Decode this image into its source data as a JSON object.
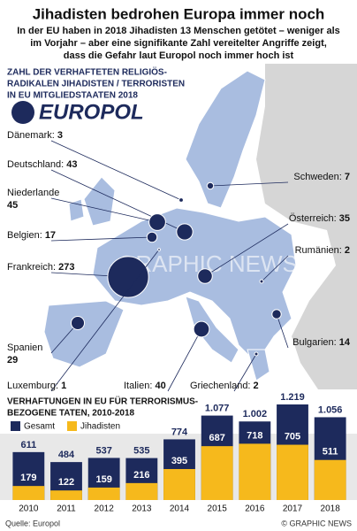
{
  "title": "Jihadisten bedrohen Europa immer noch",
  "subtitle": [
    "In der EU haben in 2018 Jihadisten 13 Menschen getötet – weniger als",
    "im Vorjahr –  aber eine signifikante Zahl vereitelter Angriffe zeigt,",
    "dass die Gefahr laut Europol noch immer hoch ist"
  ],
  "map": {
    "heading": [
      "ZAHL DER VERHAFTETEN RELIGIÖS-",
      "RADIKALEN JIHADISTEN / TERRORISTEN",
      "IN EU MITGLIEDSTAATEN 2018"
    ],
    "logo": "EUROPOL",
    "watermark": "GRAPHIC NEWS",
    "countries": [
      {
        "name": "Dänemark:",
        "value": 3
      },
      {
        "name": "Deutschland:",
        "value": 43
      },
      {
        "name": "Niederlande",
        "value": 45
      },
      {
        "name": "Belgien:",
        "value": 17
      },
      {
        "name": "Frankreich:",
        "value": 273
      },
      {
        "name": "Spanien",
        "value": 29
      },
      {
        "name": "Luxemburg:",
        "value": 1
      },
      {
        "name": "Italien:",
        "value": 40
      },
      {
        "name": "Griechenland:",
        "value": 2
      },
      {
        "name": "Bulgarien:",
        "value": 14
      },
      {
        "name": "Rumänien:",
        "value": 2
      },
      {
        "name": "Österreich:",
        "value": 35
      },
      {
        "name": "Schweden:",
        "value": 7
      }
    ]
  },
  "chart_data": {
    "type": "bar",
    "title": [
      "VERHAFTUNGEN IN EU FÜR TERRORISMUS-",
      "BEZOGENE  TATEN, 2010-2018"
    ],
    "categories": [
      "2010",
      "2011",
      "2012",
      "2013",
      "2014",
      "2015",
      "2016",
      "2017",
      "2018"
    ],
    "series": [
      {
        "name": "Gesamt",
        "color": "#1d2a5c",
        "values": [
          611,
          484,
          537,
          535,
          774,
          1077,
          1002,
          1219,
          1056
        ],
        "value_labels": [
          "611",
          "484",
          "537",
          "535",
          "774",
          "1.077",
          "1.002",
          "1.219",
          "1.056"
        ]
      },
      {
        "name": "Jihadisten",
        "color": "#f6b91c",
        "values": [
          179,
          122,
          159,
          216,
          395,
          687,
          718,
          705,
          511
        ]
      }
    ]
  },
  "source": "Quelle: Europol",
  "credit": "© GRAPHIC NEWS"
}
